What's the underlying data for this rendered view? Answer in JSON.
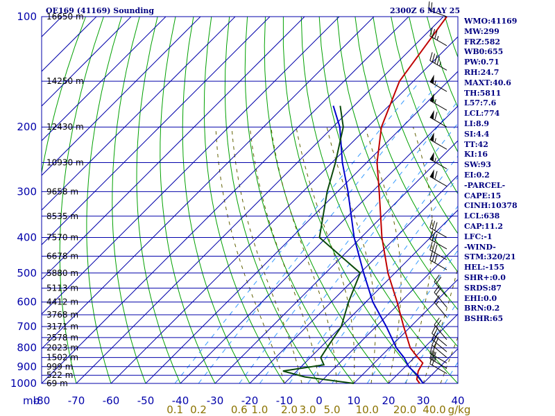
{
  "header": {
    "title": "OE169 (41169) Sounding",
    "datetime": "2300Z  6 MAY 25"
  },
  "indices": [
    "WMO:41169",
    "MW:299",
    "FRZ:582",
    "WB0:655",
    "PW:0.71",
    "RH:24.7",
    "MAXT:40.6",
    "TH:5811",
    "L57:7.6",
    "LCL:774",
    "LI:8.9",
    "SI:4.4",
    "TT:42",
    "KI:16",
    "SW:93",
    "EI:0.2",
    "-PARCEL-",
    "CAPE:15",
    "CINH:10378",
    "LCL:638",
    "CAP:11.2",
    "LFC:-1",
    "-WIND-",
    "STM:320/21",
    "HEL:-155",
    "SHR+:0.0",
    "SRDS:87",
    "EHI:0.0",
    "BRN:0.2",
    "BSHR:65"
  ],
  "colors": {
    "grid": "#0000aa",
    "dry_adiabat": "#00a000",
    "moist_adiabat": "#606000",
    "mixing_ratio": "#3399ff",
    "temperature": "#c00000",
    "dewpoint": "#0a4a0a",
    "parcel": "#0000cc",
    "wind_barb": "#000000"
  },
  "chart_data": {
    "type": "line",
    "title": "OE169 (41169) Sounding",
    "pressure_levels": [
      "100",
      "200",
      "300",
      "400",
      "500",
      "600",
      "700",
      "800",
      "900",
      "1000"
    ],
    "pressure_unit": "mb",
    "temperature_ticks": [
      "-80",
      "-70",
      "-60",
      "-50",
      "-40",
      "-30",
      "-20",
      "-10",
      "0",
      "10",
      "20",
      "30",
      "40"
    ],
    "temperature_axis_label": "mb",
    "mixing_ratio_ticks": [
      "0.1",
      "0.2",
      "0.6",
      "1.0",
      "2.0",
      "3.0",
      "5.0",
      "10.0",
      "20.0",
      "40.0"
    ],
    "mixing_ratio_values": [
      0.1,
      0.2,
      0.6,
      1.0,
      2.0,
      3.0,
      5.0,
      10.0,
      20.0,
      40.0
    ],
    "mixing_ratio_unit": "g/kg",
    "height_labels": [
      {
        "p": 100,
        "label": "16650 m"
      },
      {
        "p": 150,
        "label": "14250 m"
      },
      {
        "p": 200,
        "label": "12430 m"
      },
      {
        "p": 250,
        "label": "10930 m"
      },
      {
        "p": 300,
        "label": "9658 m"
      },
      {
        "p": 350,
        "label": "8535 m"
      },
      {
        "p": 400,
        "label": "7570 m"
      },
      {
        "p": 450,
        "label": "6678 m"
      },
      {
        "p": 500,
        "label": "5880 m"
      },
      {
        "p": 550,
        "label": "5113 m"
      },
      {
        "p": 600,
        "label": "4412 m"
      },
      {
        "p": 650,
        "label": "3768 m"
      },
      {
        "p": 700,
        "label": "3171 m"
      },
      {
        "p": 750,
        "label": "2578 m"
      },
      {
        "p": 800,
        "label": "2023 m"
      },
      {
        "p": 850,
        "label": "1502 m"
      },
      {
        "p": 900,
        "label": "999 m"
      },
      {
        "p": 950,
        "label": "522 m"
      },
      {
        "p": 1000,
        "label": "69 m"
      }
    ],
    "x_range_at_1000mb": [
      -80,
      40
    ],
    "y_range_mb": [
      100,
      1000
    ],
    "y_scale": "log",
    "skew": "45-degree skew-T",
    "series": [
      {
        "key": "temperature",
        "points": [
          {
            "p": 1000,
            "t": 29
          },
          {
            "p": 975,
            "t": 27
          },
          {
            "p": 950,
            "t": 26
          },
          {
            "p": 925,
            "t": 25
          },
          {
            "p": 880,
            "t": 24
          },
          {
            "p": 850,
            "t": 21
          },
          {
            "p": 800,
            "t": 16
          },
          {
            "p": 700,
            "t": 8
          },
          {
            "p": 600,
            "t": -1
          },
          {
            "p": 500,
            "t": -12
          },
          {
            "p": 400,
            "t": -24
          },
          {
            "p": 300,
            "t": -38
          },
          {
            "p": 250,
            "t": -47
          },
          {
            "p": 200,
            "t": -56
          },
          {
            "p": 150,
            "t": -64
          },
          {
            "p": 100,
            "t": -69
          }
        ]
      },
      {
        "key": "parcel",
        "points": [
          {
            "p": 1000,
            "t": 30
          },
          {
            "p": 950,
            "t": 26
          },
          {
            "p": 900,
            "t": 21
          },
          {
            "p": 850,
            "t": 17
          },
          {
            "p": 800,
            "t": 12
          },
          {
            "p": 700,
            "t": 3
          },
          {
            "p": 600,
            "t": -8
          },
          {
            "p": 500,
            "t": -19
          },
          {
            "p": 400,
            "t": -32
          },
          {
            "p": 300,
            "t": -47
          },
          {
            "p": 250,
            "t": -57
          },
          {
            "p": 200,
            "t": -68
          },
          {
            "p": 175,
            "t": -76
          }
        ]
      },
      {
        "key": "dewpoint",
        "points": [
          {
            "p": 1000,
            "t": 10
          },
          {
            "p": 960,
            "t": -6
          },
          {
            "p": 925,
            "t": -14
          },
          {
            "p": 890,
            "t": -4
          },
          {
            "p": 850,
            "t": -7
          },
          {
            "p": 800,
            "t": -8
          },
          {
            "p": 700,
            "t": -10
          },
          {
            "p": 600,
            "t": -15
          },
          {
            "p": 500,
            "t": -20
          },
          {
            "p": 400,
            "t": -42
          },
          {
            "p": 300,
            "t": -53
          },
          {
            "p": 250,
            "t": -59
          },
          {
            "p": 200,
            "t": -67
          },
          {
            "p": 175,
            "t": -74
          }
        ]
      }
    ],
    "wind_barbs": [
      {
        "p": 100,
        "dir": 290,
        "spd": 25
      },
      {
        "p": 120,
        "dir": 300,
        "spd": 35
      },
      {
        "p": 140,
        "dir": 300,
        "spd": 45
      },
      {
        "p": 160,
        "dir": 300,
        "spd": 55
      },
      {
        "p": 180,
        "dir": 300,
        "spd": 55
      },
      {
        "p": 200,
        "dir": 300,
        "spd": 60
      },
      {
        "p": 230,
        "dir": 300,
        "spd": 55
      },
      {
        "p": 260,
        "dir": 300,
        "spd": 55
      },
      {
        "p": 290,
        "dir": 300,
        "spd": 60
      },
      {
        "p": 400,
        "dir": 300,
        "spd": 30
      },
      {
        "p": 430,
        "dir": 300,
        "spd": 30
      },
      {
        "p": 460,
        "dir": 300,
        "spd": 30
      },
      {
        "p": 490,
        "dir": 300,
        "spd": 30
      },
      {
        "p": 580,
        "dir": 320,
        "spd": 20
      },
      {
        "p": 620,
        "dir": 320,
        "spd": 20
      },
      {
        "p": 660,
        "dir": 320,
        "spd": 15
      },
      {
        "p": 760,
        "dir": 320,
        "spd": 20
      },
      {
        "p": 790,
        "dir": 310,
        "spd": 20
      },
      {
        "p": 820,
        "dir": 310,
        "spd": 20
      },
      {
        "p": 850,
        "dir": 310,
        "spd": 20
      },
      {
        "p": 880,
        "dir": 300,
        "spd": 25
      },
      {
        "p": 910,
        "dir": 300,
        "spd": 25
      },
      {
        "p": 940,
        "dir": 300,
        "spd": 20
      }
    ]
  }
}
